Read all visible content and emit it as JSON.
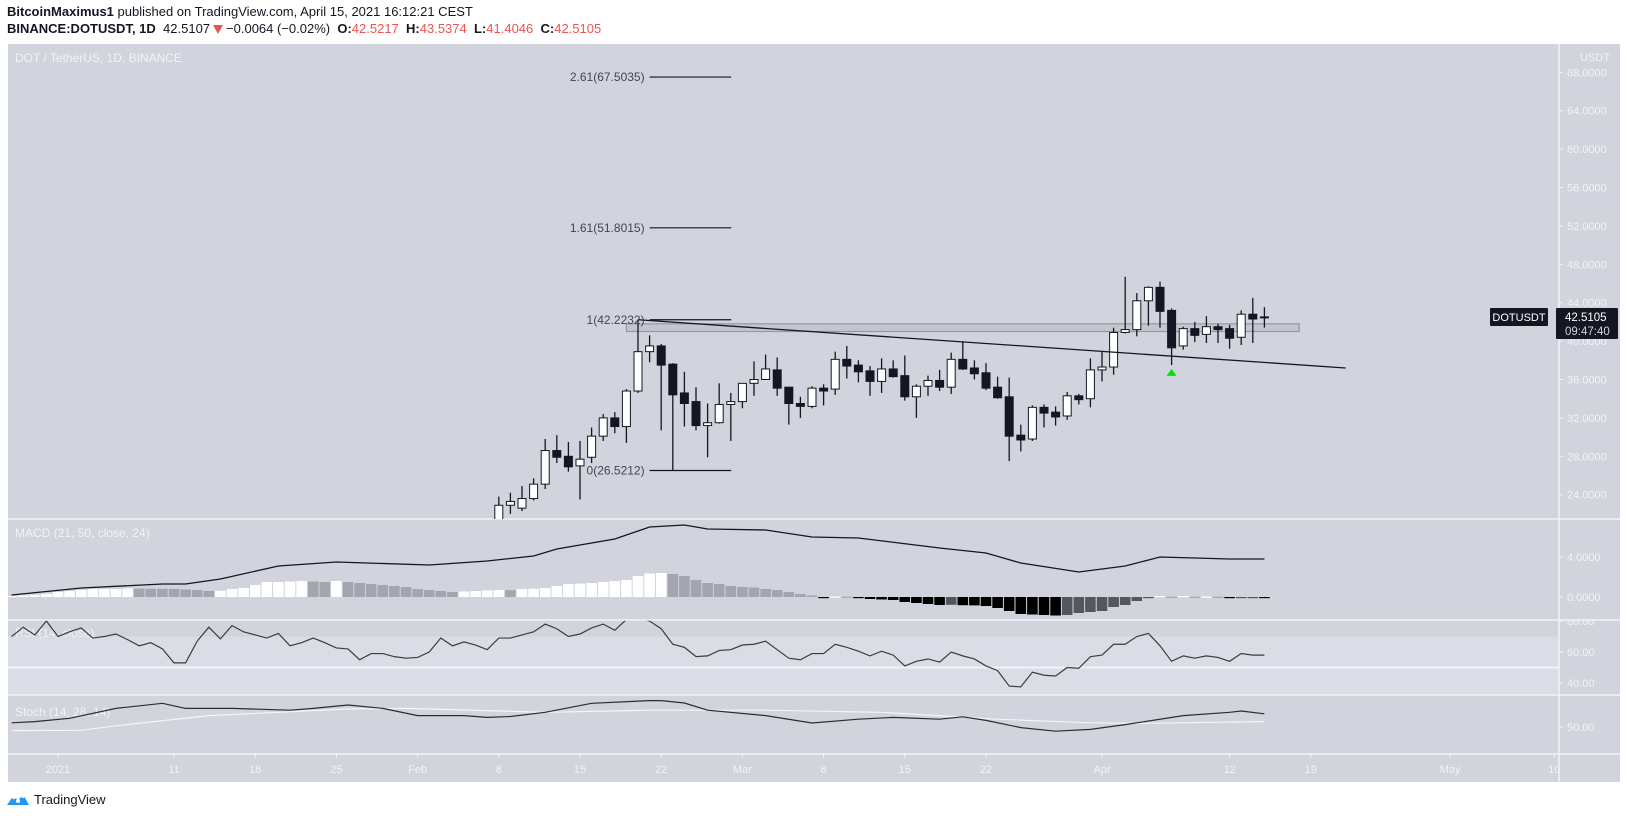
{
  "header": {
    "author": "BitcoinMaximus1",
    "published": " published on TradingView.com, April 15, 2021 16:12:21 CEST",
    "symbol_interval": "BINANCE:DOTUSDT, 1D",
    "last": "42.5107",
    "change": "−0.0064 (−0.02%)",
    "o_label": "O:",
    "o": "42.5217",
    "h_label": "H:",
    "h": "43.5374",
    "l_label": "L:",
    "l": "41.4046",
    "c_label": "C:",
    "c": "42.5105",
    "change_direction": "down"
  },
  "footer": {
    "brand": "TradingView",
    "icon": "tradingview-logo-icon"
  },
  "colors": {
    "pane_bg": "#d1d4dc",
    "band_bg": "#dadde5",
    "separator": "#f0f3fa",
    "axis_text": "#f0f3fa",
    "candle_up": "#ffffff",
    "candle_down": "#131722",
    "candle_border": "#131722",
    "hist_up_rising": "#ffffff",
    "hist_up_falling": "#a3a6af",
    "hist_down_falling": "#000000",
    "hist_down_rising": "#55575e",
    "macd_line": "#131722",
    "rsi_line": "#3a3c42",
    "stoch_k": "#2a2c32",
    "stoch_d": "#f4f5f8",
    "down": "#ef5350",
    "marker": "#00e600",
    "logo": "#2196f3"
  },
  "chart_data": {
    "type": "candlestick",
    "title": "DOT / TetherUS, 1D, BINANCE",
    "price_axis": {
      "unit": "USDT",
      "ticks": [
        "68.0000",
        "64.0000",
        "60.0000",
        "56.0000",
        "52.0000",
        "48.0000",
        "44.0000",
        "40.0000",
        "36.0000",
        "32.0000",
        "28.0000",
        "24.0000"
      ]
    },
    "last_price": {
      "symbol": "DOTUSDT",
      "value": "42.5105",
      "countdown": "09:47:40"
    },
    "time_axis": [
      {
        "label": "2021",
        "date": "2021-01-01"
      },
      {
        "label": "11",
        "date": "2021-01-11"
      },
      {
        "label": "18",
        "date": "2021-01-18"
      },
      {
        "label": "25",
        "date": "2021-01-25"
      },
      {
        "label": "Feb",
        "date": "2021-02-01"
      },
      {
        "label": "8",
        "date": "2021-02-08"
      },
      {
        "label": "15",
        "date": "2021-02-15"
      },
      {
        "label": "22",
        "date": "2021-02-22"
      },
      {
        "label": "Mar",
        "date": "2021-03-01"
      },
      {
        "label": "8",
        "date": "2021-03-08"
      },
      {
        "label": "15",
        "date": "2021-03-15"
      },
      {
        "label": "22",
        "date": "2021-03-22"
      },
      {
        "label": "Apr",
        "date": "2021-04-01"
      },
      {
        "label": "12",
        "date": "2021-04-12"
      },
      {
        "label": "19",
        "date": "2021-04-19"
      },
      {
        "label": "May",
        "date": "2021-05-01"
      },
      {
        "label": "10",
        "date": "2021-05-10"
      }
    ],
    "candles_columns": [
      "date",
      "open",
      "high",
      "low",
      "close"
    ],
    "candles": [
      [
        "2021-02-08",
        21.0,
        23.8,
        20.5,
        22.9
      ],
      [
        "2021-02-09",
        22.9,
        24.2,
        22.0,
        23.3
      ],
      [
        "2021-02-10",
        22.6,
        24.9,
        22.3,
        23.6
      ],
      [
        "2021-02-11",
        23.6,
        25.7,
        23.4,
        25.1
      ],
      [
        "2021-02-12",
        25.1,
        29.8,
        24.6,
        28.6
      ],
      [
        "2021-02-13",
        28.6,
        30.2,
        27.3,
        27.9
      ],
      [
        "2021-02-14",
        28.0,
        29.5,
        26.4,
        26.9
      ],
      [
        "2021-02-15",
        27.0,
        29.6,
        23.5,
        27.7
      ],
      [
        "2021-02-16",
        27.9,
        31.0,
        27.3,
        30.1
      ],
      [
        "2021-02-17",
        30.1,
        32.4,
        29.6,
        32.0
      ],
      [
        "2021-02-18",
        32.0,
        32.6,
        30.4,
        31.1
      ],
      [
        "2021-02-19",
        31.1,
        35.0,
        29.4,
        34.8
      ],
      [
        "2021-02-20",
        34.8,
        42.22,
        34.6,
        38.9
      ],
      [
        "2021-02-21",
        38.9,
        40.6,
        37.8,
        39.5
      ],
      [
        "2021-02-22",
        39.5,
        39.7,
        30.7,
        37.5
      ],
      [
        "2021-02-23",
        37.6,
        37.7,
        26.52,
        34.4
      ],
      [
        "2021-02-24",
        34.6,
        36.8,
        31.1,
        33.5
      ],
      [
        "2021-02-25",
        33.7,
        35.2,
        30.7,
        31.2
      ],
      [
        "2021-02-26",
        31.2,
        33.5,
        27.9,
        31.5
      ],
      [
        "2021-02-27",
        31.5,
        35.6,
        31.4,
        33.4
      ],
      [
        "2021-02-28",
        33.4,
        34.6,
        29.6,
        33.7
      ],
      [
        "2021-03-01",
        33.7,
        35.6,
        33.0,
        35.6
      ],
      [
        "2021-03-02",
        35.6,
        37.9,
        34.3,
        36.0
      ],
      [
        "2021-03-03",
        36.0,
        38.6,
        36.0,
        37.1
      ],
      [
        "2021-03-04",
        37.0,
        38.3,
        34.3,
        35.1
      ],
      [
        "2021-03-05",
        35.2,
        35.2,
        31.3,
        33.5
      ],
      [
        "2021-03-06",
        33.5,
        34.2,
        32.0,
        33.2
      ],
      [
        "2021-03-07",
        33.2,
        35.3,
        33.0,
        35.1
      ],
      [
        "2021-03-08",
        35.1,
        35.5,
        33.3,
        34.8
      ],
      [
        "2021-03-09",
        35.0,
        38.9,
        34.4,
        38.1
      ],
      [
        "2021-03-10",
        38.1,
        39.5,
        36.1,
        37.4
      ],
      [
        "2021-03-11",
        37.5,
        38.0,
        35.7,
        36.8
      ],
      [
        "2021-03-12",
        36.9,
        37.4,
        34.3,
        35.8
      ],
      [
        "2021-03-13",
        35.8,
        38.2,
        34.6,
        37.1
      ],
      [
        "2021-03-14",
        37.1,
        38.0,
        36.2,
        36.3
      ],
      [
        "2021-03-15",
        36.4,
        38.5,
        33.8,
        34.2
      ],
      [
        "2021-03-16",
        34.2,
        35.5,
        32.0,
        35.3
      ],
      [
        "2021-03-17",
        35.3,
        36.4,
        34.3,
        35.9
      ],
      [
        "2021-03-18",
        35.9,
        37.0,
        34.8,
        35.2
      ],
      [
        "2021-03-19",
        35.2,
        38.8,
        34.5,
        38.1
      ],
      [
        "2021-03-20",
        38.1,
        40.0,
        37.0,
        37.1
      ],
      [
        "2021-03-21",
        37.2,
        38.0,
        36.0,
        36.6
      ],
      [
        "2021-03-22",
        36.7,
        37.7,
        34.9,
        35.1
      ],
      [
        "2021-03-23",
        35.2,
        36.3,
        34.0,
        34.1
      ],
      [
        "2021-03-24",
        34.2,
        36.2,
        27.5,
        30.1
      ],
      [
        "2021-03-25",
        30.2,
        31.3,
        28.5,
        29.7
      ],
      [
        "2021-03-26",
        29.8,
        33.3,
        29.6,
        33.1
      ],
      [
        "2021-03-27",
        33.1,
        33.4,
        31.0,
        32.5
      ],
      [
        "2021-03-28",
        32.6,
        33.2,
        31.2,
        32.1
      ],
      [
        "2021-03-29",
        32.2,
        34.7,
        31.8,
        34.3
      ],
      [
        "2021-03-30",
        34.3,
        34.5,
        33.4,
        33.9
      ],
      [
        "2021-03-31",
        34.0,
        38.2,
        33.1,
        37.0
      ],
      [
        "2021-04-01",
        37.0,
        38.9,
        35.8,
        37.3
      ],
      [
        "2021-04-02",
        37.3,
        41.4,
        36.5,
        40.9
      ],
      [
        "2021-04-03",
        40.9,
        46.7,
        40.8,
        41.2
      ],
      [
        "2021-04-04",
        41.2,
        45.0,
        40.5,
        44.2
      ],
      [
        "2021-04-05",
        44.2,
        45.7,
        41.6,
        45.6
      ],
      [
        "2021-04-06",
        45.6,
        46.2,
        41.4,
        43.1
      ],
      [
        "2021-04-07",
        43.2,
        43.4,
        37.5,
        39.3
      ],
      [
        "2021-04-08",
        39.5,
        41.5,
        39.1,
        41.3
      ],
      [
        "2021-04-09",
        41.3,
        42.0,
        39.9,
        40.6
      ],
      [
        "2021-04-10",
        40.7,
        42.6,
        39.8,
        41.5
      ],
      [
        "2021-04-11",
        41.5,
        41.8,
        39.8,
        41.2
      ],
      [
        "2021-04-12",
        41.3,
        41.7,
        39.2,
        40.3
      ],
      [
        "2021-04-13",
        40.4,
        43.2,
        39.6,
        42.8
      ],
      [
        "2021-04-14",
        42.8,
        44.5,
        39.8,
        42.3
      ],
      [
        "2021-04-15",
        42.5217,
        43.5374,
        41.4046,
        42.5105
      ]
    ],
    "fib_extension": {
      "from_date": "2021-02-21",
      "to_date": "2021-02-27",
      "levels": [
        {
          "label": "2.61(67.5035)",
          "price": 67.5035
        },
        {
          "label": "1.61(51.8015)",
          "price": 51.8015
        },
        {
          "label": "1(42.2232)",
          "price": 42.2232
        },
        {
          "label": "0(26.5212)",
          "price": 26.5212
        }
      ]
    },
    "zone": {
      "from_date": "2021-02-19",
      "to_date": "2021-04-18",
      "low": 41.0,
      "high": 41.8
    },
    "trendline": {
      "from": [
        "2021-02-20",
        42.22
      ],
      "to": [
        "2021-04-22",
        37.2
      ]
    },
    "signal_marker": {
      "date": "2021-04-07",
      "shape": "arrow-up",
      "price": 36.8
    },
    "macd": {
      "title": "MACD (21, 50, close, 24)",
      "ticks": [
        "4.0000",
        "0.0000"
      ],
      "line": [
        [
          "2020-12-28",
          0.2
        ],
        [
          "2021-01-03",
          0.9
        ],
        [
          "2021-01-10",
          1.3
        ],
        [
          "2021-01-12",
          1.3
        ],
        [
          "2021-01-15",
          1.8
        ],
        [
          "2021-01-20",
          3.1
        ],
        [
          "2021-01-25",
          3.5
        ],
        [
          "2021-02-02",
          3.2
        ],
        [
          "2021-02-07",
          3.6
        ],
        [
          "2021-02-11",
          4.1
        ],
        [
          "2021-02-13",
          4.8
        ],
        [
          "2021-02-18",
          5.8
        ],
        [
          "2021-02-21",
          7.0
        ],
        [
          "2021-02-24",
          7.2
        ],
        [
          "2021-02-26",
          6.8
        ],
        [
          "2021-03-03",
          6.7
        ],
        [
          "2021-03-07",
          6.0
        ],
        [
          "2021-03-11",
          5.9
        ],
        [
          "2021-03-18",
          4.9
        ],
        [
          "2021-03-22",
          4.4
        ],
        [
          "2021-03-25",
          3.4
        ],
        [
          "2021-03-30",
          2.5
        ],
        [
          "2021-04-03",
          3.1
        ],
        [
          "2021-04-06",
          4.0
        ],
        [
          "2021-04-12",
          3.8
        ],
        [
          "2021-04-15",
          3.8
        ]
      ],
      "histogram_start": "2020-12-28",
      "histogram": [
        0.1,
        0.15,
        0.2,
        0.3,
        0.5,
        0.6,
        0.7,
        0.8,
        0.8,
        0.8,
        0.85,
        0.84,
        0.83,
        0.82,
        0.81,
        0.75,
        0.7,
        0.6,
        0.62,
        0.8,
        0.9,
        1.2,
        1.5,
        1.5,
        1.55,
        1.6,
        1.55,
        1.5,
        1.6,
        1.5,
        1.4,
        1.3,
        1.2,
        1.1,
        1.0,
        0.8,
        0.7,
        0.6,
        0.5,
        0.55,
        0.6,
        0.65,
        0.7,
        0.68,
        0.8,
        0.82,
        0.9,
        1.1,
        1.3,
        1.34,
        1.4,
        1.5,
        1.6,
        1.7,
        2.1,
        2.35,
        2.4,
        2.3,
        2.1,
        1.7,
        1.4,
        1.3,
        1.1,
        1.0,
        0.95,
        0.8,
        0.7,
        0.5,
        0.3,
        0.15,
        -0.05,
        0.05,
        0.03,
        -0.1,
        -0.2,
        -0.25,
        -0.3,
        -0.5,
        -0.6,
        -0.7,
        -0.8,
        -0.78,
        -0.82,
        -0.84,
        -0.9,
        -1.1,
        -1.4,
        -1.7,
        -1.75,
        -1.8,
        -1.85,
        -1.8,
        -1.6,
        -1.5,
        -1.4,
        -1.0,
        -0.8,
        -0.4,
        -0.05,
        0.1,
        0.03,
        0.1,
        0.03,
        0.05,
        0.03,
        -0.1,
        -0.05,
        -0.05,
        -0.06
      ]
    },
    "rsi": {
      "title": "RSI (14, close)",
      "ticks": [
        "80.00",
        "60.00",
        "40.00"
      ],
      "band": [
        30,
        70
      ],
      "mid_line": 50,
      "start": "2020-12-28",
      "values": [
        70,
        76,
        71,
        80,
        70,
        73,
        75.5,
        69,
        70,
        71.6,
        68,
        64,
        66,
        62,
        53,
        53,
        67,
        76,
        68.5,
        77,
        73,
        71,
        69,
        72,
        64,
        66,
        69,
        66,
        62.6,
        62,
        55,
        59,
        59,
        57,
        56,
        56.5,
        60,
        69,
        64,
        66.5,
        64.5,
        61.5,
        69,
        69,
        71,
        73,
        78,
        75,
        70,
        71.6,
        75.5,
        78,
        74,
        81,
        82,
        80,
        75,
        65,
        63,
        57,
        57.5,
        61,
        61.5,
        64.5,
        65,
        67,
        61.5,
        56,
        55,
        59,
        59,
        65,
        63,
        60.5,
        57.5,
        60.5,
        58,
        51,
        54,
        55.5,
        53.5,
        60,
        57.5,
        55.5,
        51,
        48,
        38,
        37.5,
        47,
        45,
        44.5,
        50,
        49.5,
        57,
        58,
        65,
        65,
        70,
        72,
        64,
        54,
        57.5,
        56,
        57.5,
        56.5,
        54,
        59,
        58,
        58
      ]
    },
    "stoch": {
      "title": "Stoch (14, 28, 14)",
      "ticks": [
        "50.00"
      ],
      "k": [
        [
          "2020-12-28",
          57
        ],
        [
          "2020-12-30",
          59
        ],
        [
          "2021-01-02",
          64.5
        ],
        [
          "2021-01-06",
          81
        ],
        [
          "2021-01-10",
          89.5
        ],
        [
          "2021-01-12",
          81
        ],
        [
          "2021-01-16",
          81
        ],
        [
          "2021-01-21",
          78
        ],
        [
          "2021-01-23",
          81
        ],
        [
          "2021-01-26",
          86.6
        ],
        [
          "2021-01-29",
          81
        ],
        [
          "2021-02-01",
          69
        ],
        [
          "2021-02-05",
          69
        ],
        [
          "2021-02-07",
          66
        ],
        [
          "2021-02-09",
          67.5
        ],
        [
          "2021-02-12",
          74.5
        ],
        [
          "2021-02-16",
          89.5
        ],
        [
          "2021-02-21",
          94
        ],
        [
          "2021-02-22",
          94
        ],
        [
          "2021-02-24",
          90
        ],
        [
          "2021-02-26",
          78
        ],
        [
          "2021-03-03",
          69
        ],
        [
          "2021-03-07",
          56.7
        ],
        [
          "2021-03-11",
          63
        ],
        [
          "2021-03-14",
          66
        ],
        [
          "2021-03-18",
          63
        ],
        [
          "2021-03-20",
          67
        ],
        [
          "2021-03-22",
          61
        ],
        [
          "2021-03-25",
          49
        ],
        [
          "2021-03-28",
          43
        ],
        [
          "2021-03-31",
          46
        ],
        [
          "2021-04-03",
          54
        ],
        [
          "2021-04-08",
          69
        ],
        [
          "2021-04-12",
          74.5
        ],
        [
          "2021-04-13",
          76.7
        ],
        [
          "2021-04-15",
          72
        ]
      ],
      "d": [
        [
          "2020-12-28",
          44
        ],
        [
          "2021-01-03",
          44.5
        ],
        [
          "2021-01-06",
          52
        ],
        [
          "2021-01-14",
          69
        ],
        [
          "2021-01-26",
          80
        ],
        [
          "2021-01-31",
          81
        ],
        [
          "2021-02-12",
          74.5
        ],
        [
          "2021-02-21",
          78
        ],
        [
          "2021-03-03",
          78
        ],
        [
          "2021-03-13",
          74.5
        ],
        [
          "2021-03-23",
          63
        ],
        [
          "2021-03-31",
          57
        ],
        [
          "2021-04-04",
          56
        ],
        [
          "2021-04-15",
          59
        ]
      ]
    }
  }
}
